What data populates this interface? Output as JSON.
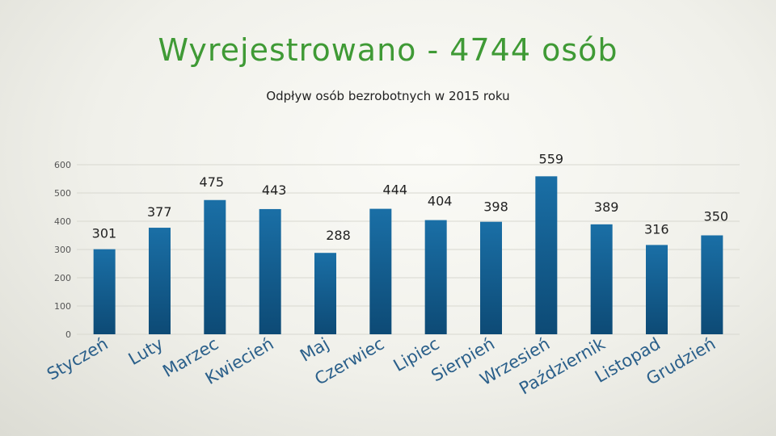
{
  "slide": {
    "title": "Wyrejestrowano - 4744 osób"
  },
  "colors": {
    "title": "#3f9a35",
    "bar_top": "#1a6fa6",
    "bar_bottom": "#0d4a75",
    "category_text": "#2a5f8a"
  },
  "chart_data": {
    "type": "bar",
    "title": "Odpływ osób bezrobotnych w 2015 roku",
    "categories": [
      "Styczeń",
      "Luty",
      "Marzec",
      "Kwiecień",
      "Maj",
      "Czerwiec",
      "Lipiec",
      "Sierpień",
      "Wrzesień",
      "Październik",
      "Listopad",
      "Grudzień"
    ],
    "values": [
      301,
      377,
      475,
      443,
      288,
      444,
      404,
      398,
      559,
      389,
      316,
      350
    ],
    "ylim": [
      0,
      600
    ],
    "yticks": [
      0,
      100,
      200,
      300,
      400,
      500,
      600
    ],
    "grid": true,
    "legend": "none"
  }
}
